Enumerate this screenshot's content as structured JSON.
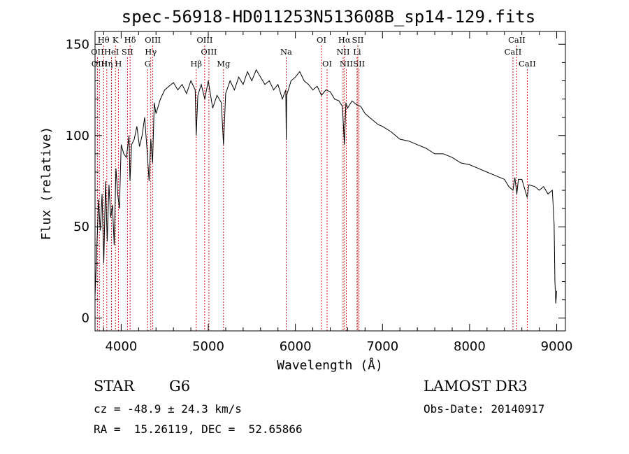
{
  "chart_data": {
    "type": "line",
    "title": "spec-56918-HD011253N513608B_sp14-129.fits",
    "xlabel": "Wavelength (Å)",
    "ylabel": "Flux (relative)",
    "xlim": [
      3700,
      9100
    ],
    "ylim": [
      -7,
      157
    ],
    "xticks": [
      4000,
      5000,
      6000,
      7000,
      8000,
      9000
    ],
    "yticks": [
      0,
      50,
      100,
      150
    ],
    "xtick_labels": [
      "4000",
      "5000",
      "6000",
      "7000",
      "8000",
      "9000"
    ],
    "ytick_labels": [
      "0",
      "50",
      "100",
      "150"
    ],
    "spectrum": {
      "x": [
        3700,
        3720,
        3740,
        3760,
        3780,
        3800,
        3820,
        3840,
        3860,
        3880,
        3900,
        3920,
        3940,
        3960,
        3980,
        4000,
        4030,
        4060,
        4090,
        4101,
        4120,
        4150,
        4180,
        4210,
        4240,
        4270,
        4300,
        4320,
        4340,
        4360,
        4380,
        4400,
        4450,
        4500,
        4550,
        4600,
        4650,
        4700,
        4750,
        4800,
        4850,
        4861,
        4880,
        4920,
        4960,
        5000,
        5050,
        5100,
        5150,
        5175,
        5200,
        5250,
        5300,
        5350,
        5400,
        5450,
        5500,
        5550,
        5600,
        5650,
        5700,
        5750,
        5800,
        5850,
        5890,
        5895,
        5900,
        5950,
        6000,
        6050,
        6100,
        6150,
        6200,
        6250,
        6300,
        6350,
        6400,
        6450,
        6500,
        6540,
        6563,
        6580,
        6600,
        6650,
        6700,
        6750,
        6800,
        6850,
        6900,
        6950,
        7000,
        7100,
        7200,
        7300,
        7400,
        7500,
        7600,
        7700,
        7800,
        7900,
        8000,
        8100,
        8200,
        8300,
        8400,
        8450,
        8498,
        8520,
        8542,
        8560,
        8600,
        8662,
        8680,
        8750,
        8800,
        8850,
        8900,
        8950,
        8970,
        8980,
        8990,
        9000
      ],
      "y": [
        12,
        38,
        65,
        48,
        68,
        30,
        75,
        42,
        73,
        55,
        62,
        40,
        82,
        68,
        60,
        95,
        90,
        88,
        100,
        75,
        95,
        98,
        105,
        94,
        100,
        110,
        90,
        75,
        98,
        85,
        118,
        112,
        120,
        125,
        127,
        129,
        125,
        128,
        123,
        130,
        125,
        100,
        122,
        128,
        120,
        130,
        115,
        122,
        118,
        95,
        123,
        130,
        125,
        132,
        128,
        135,
        130,
        136,
        132,
        128,
        130,
        125,
        128,
        120,
        125,
        98,
        122,
        130,
        132,
        135,
        130,
        128,
        125,
        127,
        122,
        125,
        124,
        120,
        119,
        116,
        95,
        118,
        115,
        119,
        117,
        116,
        112,
        110,
        108,
        106,
        105,
        102,
        98,
        97,
        95,
        93,
        90,
        90,
        88,
        85,
        84,
        82,
        80,
        78,
        76,
        72,
        70,
        77,
        68,
        76,
        76,
        66,
        73,
        72,
        70,
        72,
        68,
        70,
        52,
        20,
        8,
        15
      ]
    },
    "lines": [
      {
        "label": "OII",
        "wavelength": 3727,
        "row": 2
      },
      {
        "label": "Hθ",
        "wavelength": 3798,
        "row": 1
      },
      {
        "label": "OIII",
        "wavelength": 3750,
        "row": 3
      },
      {
        "label": "Hη",
        "wavelength": 3835,
        "row": 3
      },
      {
        "label": "HeI",
        "wavelength": 3889,
        "row": 2
      },
      {
        "label": "K",
        "wavelength": 3934,
        "row": 1
      },
      {
        "label": "SII",
        "wavelength": 4072,
        "row": 2
      },
      {
        "label": "H",
        "wavelength": 3968,
        "row": 3
      },
      {
        "label": "Hδ",
        "wavelength": 4102,
        "row": 1
      },
      {
        "label": "OIII",
        "wavelength": 4363,
        "row": 1
      },
      {
        "label": "Hγ",
        "wavelength": 4340,
        "row": 2
      },
      {
        "label": "G",
        "wavelength": 4305,
        "row": 3
      },
      {
        "label": "Hβ",
        "wavelength": 4861,
        "row": 3
      },
      {
        "label": "OIII",
        "wavelength": 4959,
        "row": 1
      },
      {
        "label": "OIII",
        "wavelength": 5007,
        "row": 2
      },
      {
        "label": "Mg",
        "wavelength": 5175,
        "row": 3
      },
      {
        "label": "Na",
        "wavelength": 5894,
        "row": 2
      },
      {
        "label": "OI",
        "wavelength": 6300,
        "row": 1
      },
      {
        "label": "OI",
        "wavelength": 6364,
        "row": 3
      },
      {
        "label": "Hα",
        "wavelength": 6563,
        "row": 1
      },
      {
        "label": "NII",
        "wavelength": 6548,
        "row": 2
      },
      {
        "label": "NII",
        "wavelength": 6584,
        "row": 3
      },
      {
        "label": "SII",
        "wavelength": 6717,
        "row": 1
      },
      {
        "label": "Li",
        "wavelength": 6708,
        "row": 2
      },
      {
        "label": "SII",
        "wavelength": 6731,
        "row": 3
      },
      {
        "label": "CaII",
        "wavelength": 8542,
        "row": 1
      },
      {
        "label": "CaII",
        "wavelength": 8498,
        "row": 2
      },
      {
        "label": "CaII",
        "wavelength": 8662,
        "row": 3
      }
    ]
  },
  "info": {
    "class": "STAR",
    "subclass": "G6",
    "survey": "LAMOST DR3",
    "cz": "cz = -48.9 ± 24.3 km/s",
    "obs_date": "Obs-Date: 20140917",
    "radec": "RA =  15.26119, DEC =  52.65866"
  },
  "colors": {
    "line_marker": "#cc0000",
    "spectrum": "#000000"
  }
}
